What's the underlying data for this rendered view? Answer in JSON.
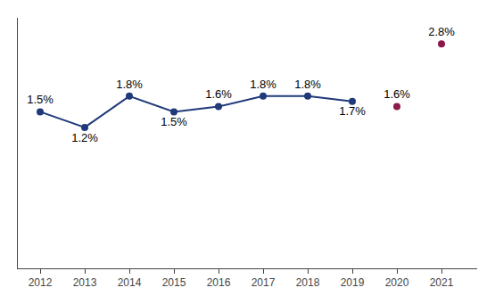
{
  "chart_data": {
    "type": "line",
    "x": [
      2012,
      2013,
      2014,
      2015,
      2016,
      2017,
      2018,
      2019,
      2020,
      2021
    ],
    "series": [
      {
        "type": "line",
        "color": "#1f3a7a",
        "marker": "circle",
        "line_style": "solid",
        "values": [
          1.5,
          1.2,
          1.8,
          1.5,
          1.6,
          1.8,
          1.8,
          1.7,
          null,
          null
        ],
        "value_labels": [
          "1.5%",
          "1.2%",
          "1.8%",
          "1.5%",
          "1.6%",
          "1.8%",
          "1.8%",
          "1.7%",
          null,
          null
        ]
      },
      {
        "type": "scatter",
        "color": "#8b1a4a",
        "marker": "circle",
        "line_style": "none",
        "values": [
          null,
          null,
          null,
          null,
          null,
          null,
          null,
          null,
          1.6,
          2.8
        ],
        "value_labels": [
          null,
          null,
          null,
          null,
          null,
          null,
          null,
          null,
          "1.6%",
          "2.8%"
        ]
      }
    ],
    "xlim": [
      2011.5,
      2021.8
    ],
    "xticks": [
      2012,
      2013,
      2014,
      2015,
      2016,
      2017,
      2018,
      2019,
      2020,
      2021
    ],
    "ylim": [
      -1.5,
      3.3
    ],
    "grid": false,
    "data_labels": true,
    "tick_labels": "x"
  }
}
